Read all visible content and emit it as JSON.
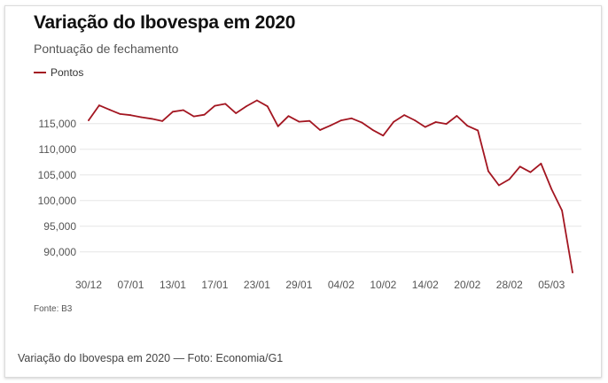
{
  "header": {
    "title": "Variação do Ibovespa em 2020",
    "subtitle": "Pontuação de fechamento"
  },
  "source": "Fonte: B3",
  "caption": "Variação do Ibovespa em 2020 — Foto: Economia/G1",
  "colors": {
    "series": "#a31621",
    "grid": "#e6e6e6",
    "axis_text": "#555555"
  },
  "chart_data": {
    "type": "line",
    "title": "Variação do Ibovespa em 2020",
    "subtitle": "Pontuação de fechamento",
    "xlabel": "",
    "ylabel": "",
    "ylim": [
      86000,
      121000
    ],
    "yticks": [
      90000,
      95000,
      100000,
      105000,
      110000,
      115000
    ],
    "ytick_labels": [
      "90,000",
      "95,000",
      "100,000",
      "105,000",
      "110,000",
      "115,000"
    ],
    "xtick_labels": [
      "30/12",
      "07/01",
      "13/01",
      "17/01",
      "23/01",
      "29/01",
      "04/02",
      "10/02",
      "14/02",
      "20/02",
      "28/02",
      "05/03"
    ],
    "xtick_index": [
      0,
      4,
      8,
      12,
      16,
      20,
      24,
      28,
      32,
      36,
      40,
      44
    ],
    "grid": true,
    "legend": "top-left",
    "series": [
      {
        "name": "Pontos",
        "values": [
          115650,
          118570,
          117710,
          116880,
          116660,
          116250,
          115950,
          115500,
          117330,
          117640,
          116410,
          116740,
          118480,
          118860,
          117030,
          118390,
          119530,
          118380,
          114480,
          116480,
          115380,
          115530,
          113760,
          114650,
          115640,
          116030,
          115190,
          113780,
          112680,
          115370,
          116670,
          115660,
          114350,
          115310,
          114940,
          116520,
          114590,
          113680,
          105720,
          102980,
          104170,
          106630,
          105540,
          107220,
          102230,
          98070,
          86000
        ]
      }
    ]
  }
}
